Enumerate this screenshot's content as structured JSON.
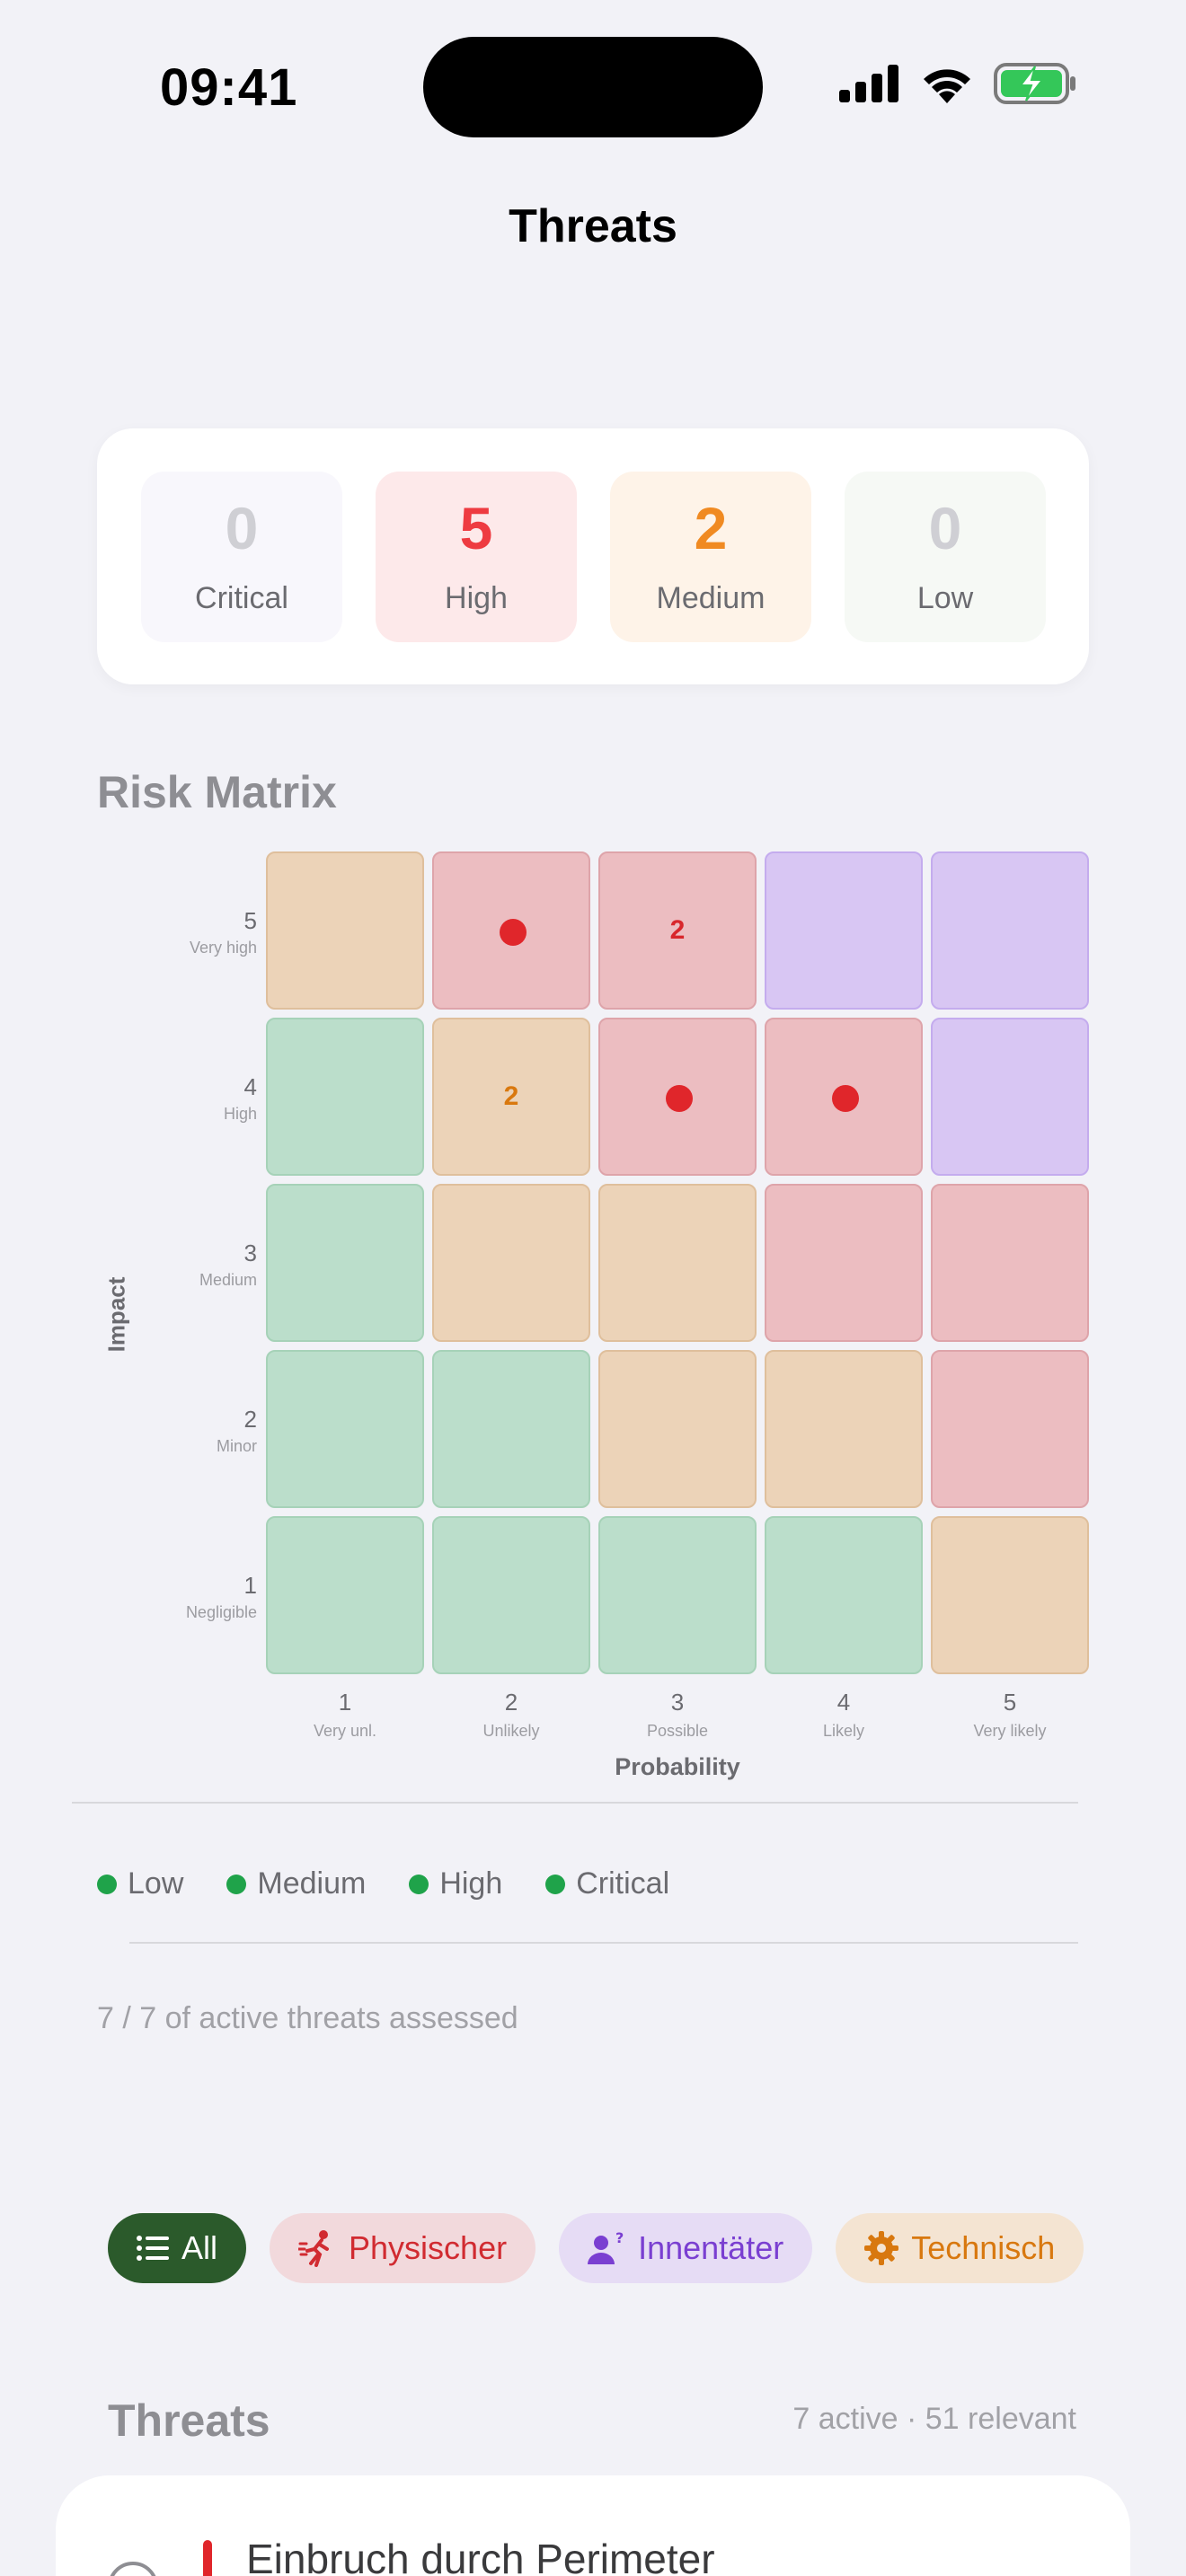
{
  "status_bar": {
    "time": "09:41"
  },
  "nav": {
    "title": "Threats"
  },
  "summary": [
    {
      "count": "0",
      "label": "Critical",
      "color": "#cfcfd4",
      "bg": "#f8f7fc"
    },
    {
      "count": "5",
      "label": "High",
      "color": "#ee3b41",
      "bg": "#fde9ea"
    },
    {
      "count": "2",
      "label": "Medium",
      "color": "#f08a22",
      "bg": "#fef3e8"
    },
    {
      "count": "0",
      "label": "Low",
      "color": "#cfcfd4",
      "bg": "#f6f9f5"
    }
  ],
  "matrix": {
    "title": "Risk Matrix",
    "y_axis_label": "Impact",
    "x_axis_label": "Probability",
    "rows": [
      {
        "num": "5",
        "label": "Very high"
      },
      {
        "num": "4",
        "label": "High"
      },
      {
        "num": "3",
        "label": "Medium"
      },
      {
        "num": "2",
        "label": "Minor"
      },
      {
        "num": "1",
        "label": "Negligible"
      }
    ],
    "cols": [
      {
        "num": "1",
        "label": "Very unl."
      },
      {
        "num": "2",
        "label": "Unlikely"
      },
      {
        "num": "3",
        "label": "Possible"
      },
      {
        "num": "4",
        "label": "Likely"
      },
      {
        "num": "5",
        "label": "Very likely"
      }
    ],
    "cell_levels": [
      [
        "orange",
        "red",
        "red",
        "purple",
        "purple"
      ],
      [
        "green",
        "orange",
        "red",
        "red",
        "purple"
      ],
      [
        "green",
        "orange",
        "orange",
        "red",
        "red"
      ],
      [
        "green",
        "green",
        "orange",
        "orange",
        "red"
      ],
      [
        "green",
        "green",
        "green",
        "green",
        "orange"
      ]
    ],
    "markers": [
      {
        "impact": 5,
        "probability": 2,
        "type": "dot"
      },
      {
        "impact": 5,
        "probability": 3,
        "type": "count",
        "value": "2",
        "color": "#d8262b"
      },
      {
        "impact": 4,
        "probability": 2,
        "type": "count",
        "value": "2",
        "color": "#d9780e"
      },
      {
        "impact": 4,
        "probability": 3,
        "type": "dot"
      },
      {
        "impact": 4,
        "probability": 4,
        "type": "dot"
      }
    ]
  },
  "legend": [
    {
      "label": "Low",
      "color": "#1fa34a"
    },
    {
      "label": "Medium",
      "color": "#1fa34a"
    },
    {
      "label": "High",
      "color": "#1fa34a"
    },
    {
      "label": "Critical",
      "color": "#1fa34a"
    }
  ],
  "assessed_text": "7 / 7 of active threats assessed",
  "filters": [
    {
      "label": "All",
      "icon": "list-icon",
      "selected": true
    },
    {
      "label": "Physischer",
      "icon": "running-person-icon",
      "selected": false
    },
    {
      "label": "Innentäter",
      "icon": "person-question-icon",
      "selected": false
    },
    {
      "label": "Technisch",
      "icon": "gear-icon",
      "selected": false
    }
  ],
  "threats": {
    "heading": "Threats",
    "meta": "7 active · 51 relevant",
    "items": [
      {
        "title": "Einbruch durch Perimeter",
        "severity_color": "#e0262b"
      }
    ]
  }
}
